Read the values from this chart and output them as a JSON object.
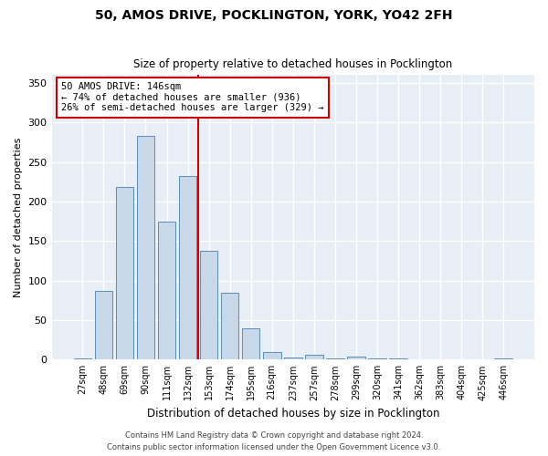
{
  "title1": "50, AMOS DRIVE, POCKLINGTON, YORK, YO42 2FH",
  "title2": "Size of property relative to detached houses in Pocklington",
  "xlabel": "Distribution of detached houses by size in Pocklington",
  "ylabel": "Number of detached properties",
  "categories": [
    "27sqm",
    "48sqm",
    "69sqm",
    "90sqm",
    "111sqm",
    "132sqm",
    "153sqm",
    "174sqm",
    "195sqm",
    "216sqm",
    "237sqm",
    "257sqm",
    "278sqm",
    "299sqm",
    "320sqm",
    "341sqm",
    "362sqm",
    "383sqm",
    "404sqm",
    "425sqm",
    "446sqm"
  ],
  "values": [
    2,
    87,
    218,
    283,
    175,
    232,
    138,
    85,
    40,
    10,
    3,
    6,
    1,
    4,
    1,
    1,
    0,
    0,
    0,
    0,
    2
  ],
  "bar_color": "#c8d8e8",
  "bar_edge_color": "#5b8db8",
  "vline_color": "#cc0000",
  "annotation_text": "50 AMOS DRIVE: 146sqm\n← 74% of detached houses are smaller (936)\n26% of semi-detached houses are larger (329) →",
  "annotation_box_color": "#ffffff",
  "annotation_box_edge": "#cc0000",
  "bg_color": "#e8eef5",
  "grid_color": "#ffffff",
  "footer1": "Contains HM Land Registry data © Crown copyright and database right 2024.",
  "footer2": "Contains public sector information licensed under the Open Government Licence v3.0.",
  "ylim": [
    0,
    360
  ],
  "yticks": [
    0,
    50,
    100,
    150,
    200,
    250,
    300,
    350
  ]
}
